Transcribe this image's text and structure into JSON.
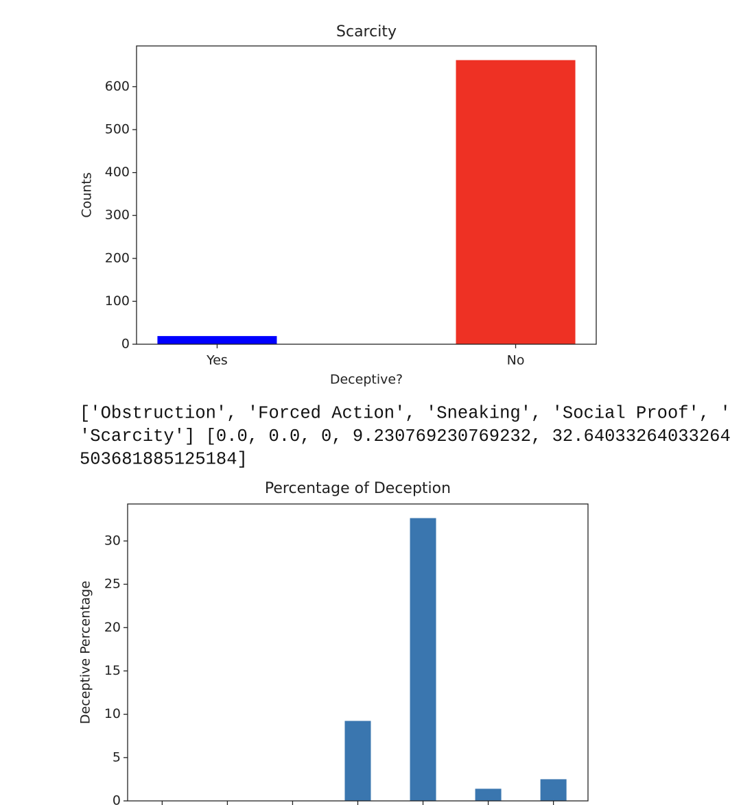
{
  "chart_data": [
    {
      "type": "bar",
      "title": "Scarcity",
      "x_label": "Deceptive?",
      "y_label": "Counts",
      "categories": [
        "Yes",
        "No"
      ],
      "values": [
        19,
        662
      ],
      "colors": [
        "#0000ff",
        "#ee3124"
      ],
      "ylim": [
        0,
        695
      ],
      "yticks": [
        0,
        100,
        200,
        300,
        400,
        500,
        600
      ]
    },
    {
      "type": "bar",
      "title": "Percentage of Deception",
      "y_label": "Deceptive Percentage",
      "categories": [
        null,
        null,
        null,
        null,
        null,
        null,
        null
      ],
      "values": [
        0.0,
        0.0,
        0,
        9.230769230769232,
        32.64033264033264,
        1.4,
        2.5
      ],
      "color": "#3a76af",
      "ylim": [
        0,
        34.27
      ],
      "yticks": [
        0,
        5,
        10,
        15,
        20,
        25,
        30
      ]
    }
  ],
  "output_text": [
    "['Obstruction', 'Forced Action', 'Sneaking', 'Social Proof', '",
    "'Scarcity'] [0.0, 0.0, 0, 9.230769230769232, 32.64033264033264",
    "503681885125184]"
  ]
}
